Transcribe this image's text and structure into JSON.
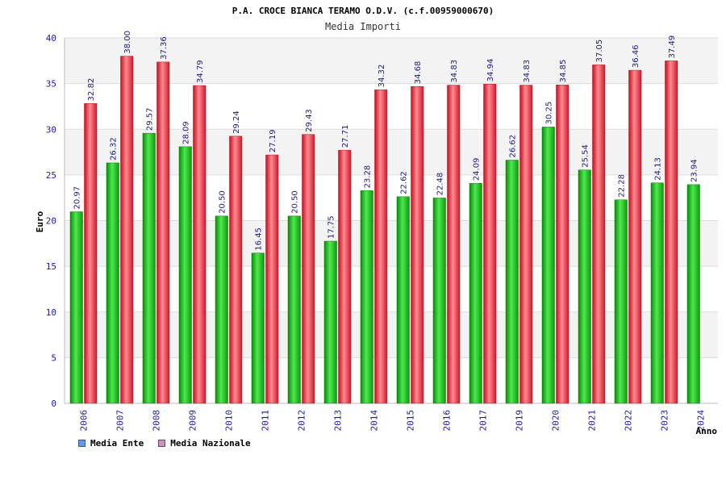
{
  "chart_data": {
    "type": "bar",
    "title": "P.A. CROCE BIANCA TERAMO O.D.V. (c.f.00959000670)",
    "subtitle": "Media Importi",
    "xlabel": "Anno",
    "ylabel": "Euro",
    "ylim": [
      0,
      40
    ],
    "yticks": [
      0,
      5,
      10,
      15,
      20,
      25,
      30,
      35,
      40
    ],
    "grid": true,
    "legend_position": "bottom-left",
    "categories": [
      "2006",
      "2007",
      "2008",
      "2009",
      "2010",
      "2011",
      "2012",
      "2013",
      "2014",
      "2015",
      "2016",
      "2017",
      "2019",
      "2020",
      "2021",
      "2022",
      "2023",
      "2024"
    ],
    "series": [
      {
        "name": "Media Ente",
        "bar_color": "#22c022",
        "legend_color": "#5aa0e6",
        "values": [
          20.97,
          26.32,
          29.57,
          28.09,
          20.5,
          16.45,
          20.5,
          17.75,
          23.28,
          22.62,
          22.48,
          24.09,
          26.62,
          30.25,
          25.54,
          22.28,
          24.13,
          23.94
        ],
        "labels": [
          "20.97",
          "26.32",
          "29.57",
          "28.09",
          "20.50",
          "16.45",
          "20.50",
          "17.75",
          "23.28",
          "22.62",
          "22.48",
          "24.09",
          "26.62",
          "30.25",
          "25.54",
          "22.28",
          "24.13",
          "23.94"
        ]
      },
      {
        "name": "Media Nazionale",
        "bar_color": "#e8303a",
        "legend_color": "#d98cbf",
        "values": [
          32.82,
          38.0,
          37.36,
          34.79,
          29.24,
          27.19,
          29.43,
          27.71,
          34.32,
          34.68,
          34.83,
          34.94,
          34.83,
          34.85,
          37.05,
          36.46,
          37.49,
          null
        ],
        "labels": [
          "32.82",
          "38.00",
          "37.36",
          "34.79",
          "29.24",
          "27.19",
          "29.43",
          "27.71",
          "34.32",
          "34.68",
          "34.83",
          "34.94",
          "34.83",
          "34.85",
          "37.05",
          "36.46",
          "37.49",
          ""
        ]
      }
    ]
  }
}
